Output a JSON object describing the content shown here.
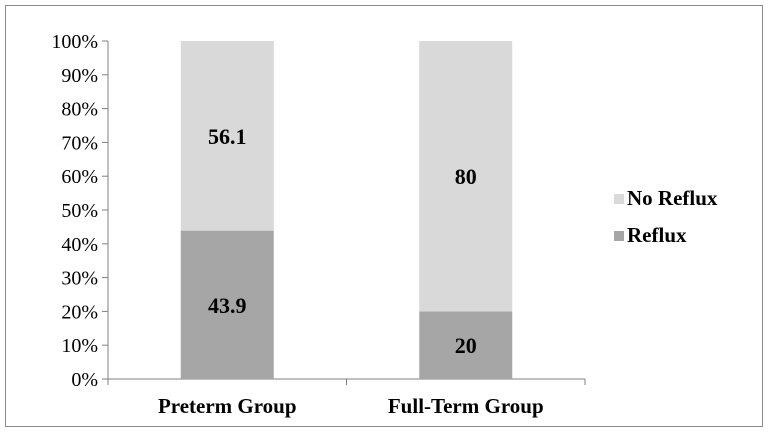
{
  "chart_data": {
    "type": "bar",
    "stacked": "percent",
    "categories": [
      "Preterm Group",
      "Full-Term Group"
    ],
    "series": [
      {
        "name": "Reflux",
        "values": [
          43.9,
          20
        ],
        "color": "#a6a6a6"
      },
      {
        "name": "No Reflux",
        "values": [
          56.1,
          80
        ],
        "color": "#d9d9d9"
      }
    ],
    "data_labels": [
      [
        "43.9",
        "20"
      ],
      [
        "56.1",
        "80"
      ]
    ],
    "ylim": [
      0,
      100
    ],
    "yticks": [
      0,
      10,
      20,
      30,
      40,
      50,
      60,
      70,
      80,
      90,
      100
    ],
    "ytick_labels": [
      "0%",
      "10%",
      "20%",
      "30%",
      "40%",
      "50%",
      "60%",
      "70%",
      "80%",
      "90%",
      "100%"
    ],
    "legend_order": [
      "No Reflux",
      "Reflux"
    ],
    "legend_position": "right",
    "grid": false,
    "axis_color": "#808080"
  }
}
